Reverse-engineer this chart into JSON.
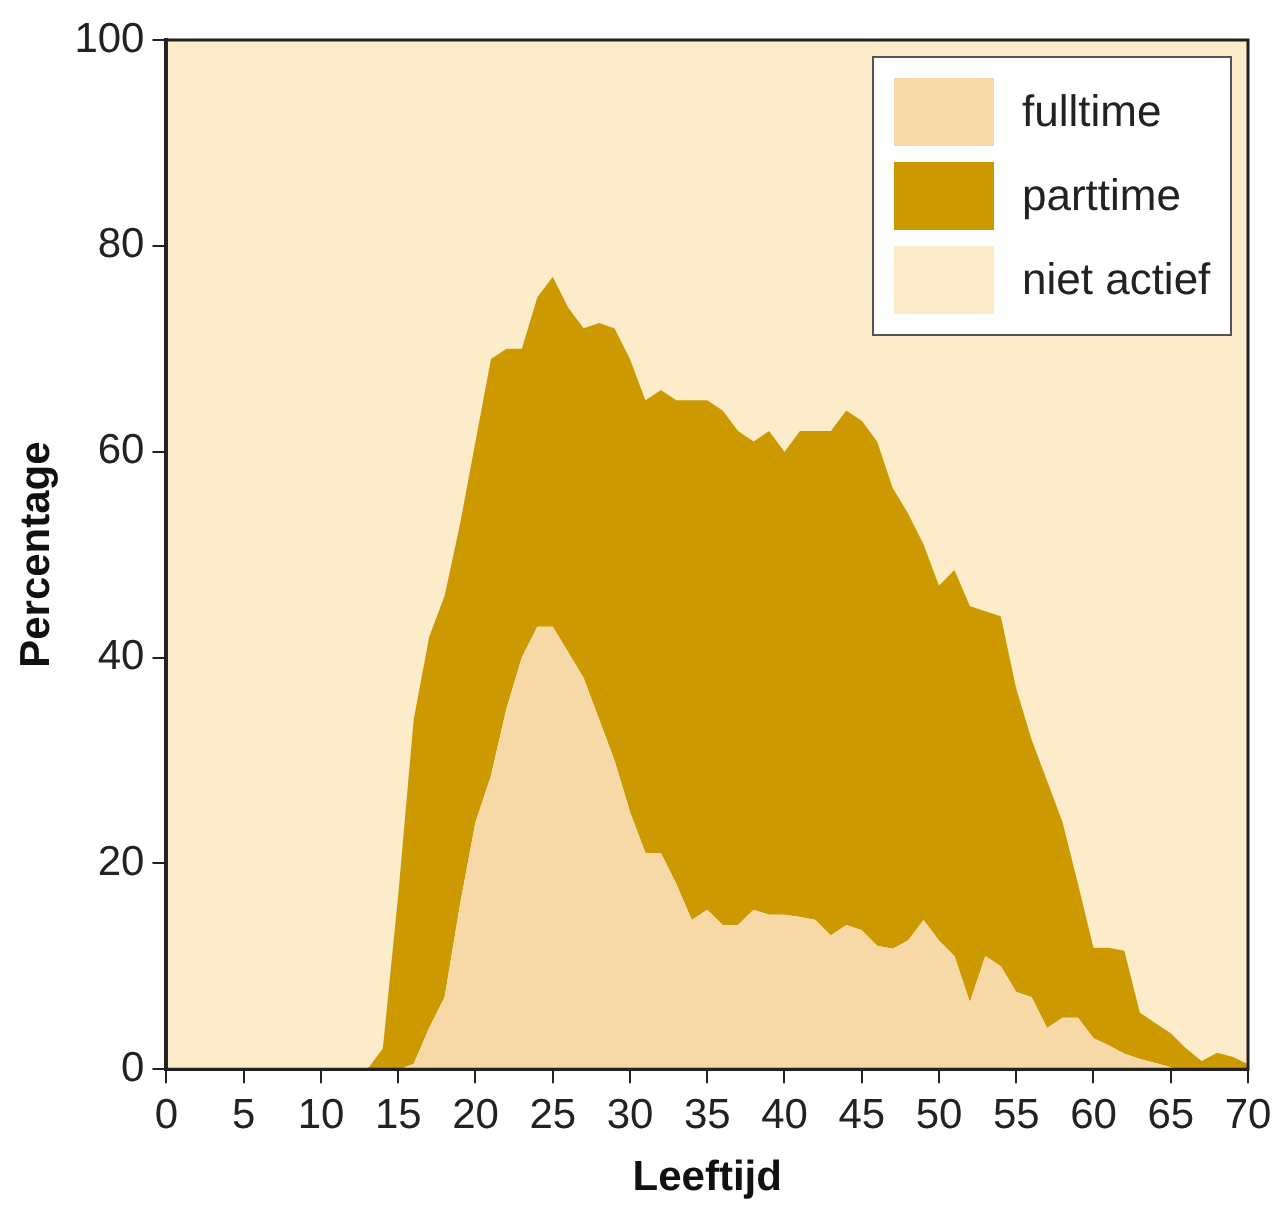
{
  "chart_data": {
    "type": "area",
    "stacked": true,
    "xlabel": "Leeftijd",
    "ylabel": "Percentage",
    "x": [
      0,
      13,
      14,
      15,
      16,
      17,
      18,
      19,
      20,
      21,
      22,
      23,
      24,
      25,
      26,
      27,
      28,
      29,
      30,
      31,
      32,
      33,
      34,
      35,
      36,
      37,
      38,
      39,
      40,
      41,
      42,
      43,
      44,
      45,
      46,
      47,
      48,
      49,
      50,
      51,
      52,
      53,
      54,
      55,
      56,
      57,
      58,
      59,
      60,
      61,
      62,
      63,
      64,
      65,
      66,
      67,
      68,
      69,
      70
    ],
    "series": [
      {
        "name": "fulltime",
        "color": "#f7d9a8",
        "values": [
          0,
          0,
          0,
          0,
          0.5,
          4,
          7,
          16,
          24,
          28.5,
          35,
          40,
          43,
          43,
          40.5,
          38,
          34,
          30,
          25,
          21,
          21,
          18,
          14.5,
          15.5,
          14,
          14,
          15.5,
          15,
          15,
          14.8,
          14.5,
          13,
          14,
          13.5,
          12,
          11.7,
          12.5,
          14.5,
          12.5,
          11,
          6.5,
          11,
          10,
          7.5,
          7,
          4,
          5,
          5,
          3,
          2.3,
          1.5,
          1,
          0.6,
          0.2,
          0,
          0,
          0,
          0,
          0
        ]
      },
      {
        "name": "parttime",
        "color": "#cc9a00",
        "values": [
          0,
          0,
          2,
          17,
          33.5,
          38,
          39,
          37,
          37,
          40.5,
          35,
          30,
          32,
          34,
          33.5,
          34,
          38.5,
          42,
          44,
          44,
          45,
          47,
          50.5,
          49.5,
          50,
          48,
          45.5,
          47,
          45,
          47.2,
          47.5,
          49,
          50,
          49.5,
          49,
          44.8,
          41.5,
          36.5,
          34.5,
          37.5,
          38.5,
          33.5,
          34,
          29.5,
          25,
          24,
          19,
          13,
          8.8,
          9.5,
          10,
          4.5,
          3.9,
          3.3,
          2,
          0.8,
          1.6,
          1.2,
          0.5
        ]
      },
      {
        "name": "niet actief",
        "color": "#fdecca",
        "values": [
          100,
          100,
          98,
          83,
          66,
          58,
          54,
          47,
          39,
          31,
          30,
          30,
          25,
          23,
          26,
          28,
          27.5,
          28,
          31,
          35,
          34,
          35,
          35,
          35,
          36,
          38,
          39,
          38,
          40,
          38,
          38,
          38,
          36,
          37,
          39,
          43.5,
          46,
          49,
          53,
          51.5,
          55,
          55.5,
          56,
          63,
          68,
          72,
          76,
          82,
          88.2,
          88.2,
          88.5,
          94.5,
          95.5,
          96.5,
          98,
          99.2,
          98.4,
          98.8,
          99.5
        ]
      }
    ],
    "xlim": [
      0,
      70
    ],
    "xticks": [
      0,
      5,
      10,
      15,
      20,
      25,
      30,
      35,
      40,
      45,
      50,
      55,
      60,
      65,
      70
    ],
    "ylim": [
      0,
      100
    ],
    "yticks": [
      0,
      20,
      40,
      60,
      80,
      100
    ],
    "legend": "top right"
  }
}
